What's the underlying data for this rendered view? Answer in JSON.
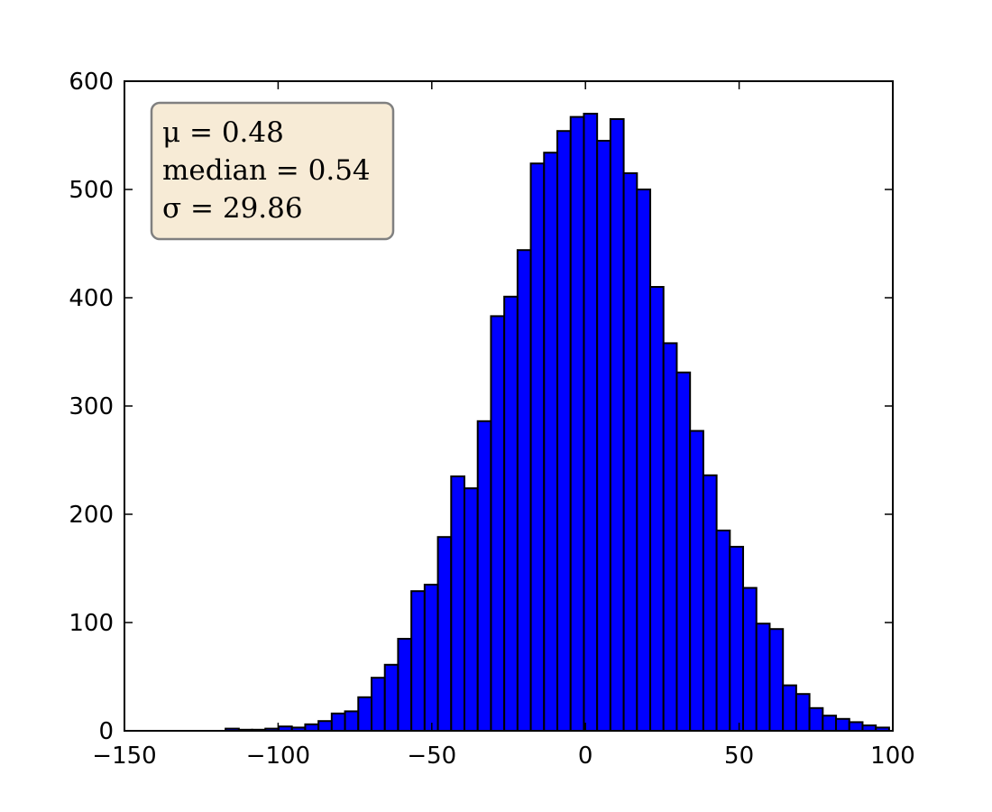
{
  "chart_data": {
    "type": "histogram",
    "bins": [
      -117.1,
      -112.78,
      -108.46,
      -104.15,
      -99.83,
      -95.51,
      -91.19,
      -86.87,
      -82.56,
      -78.24,
      -73.92,
      -69.6,
      -65.28,
      -60.97,
      -56.65,
      -52.33,
      -48.01,
      -43.69,
      -39.38,
      -35.06,
      -30.74,
      -26.42,
      -22.1,
      -17.79,
      -13.47,
      -9.15,
      -4.83,
      -0.51,
      3.8,
      8.12,
      12.44,
      16.76,
      21.08,
      25.39,
      29.71,
      34.03,
      38.35,
      42.67,
      46.98,
      51.3,
      55.62,
      59.94,
      64.26,
      68.57,
      72.89,
      77.21,
      81.53,
      85.85,
      90.16,
      94.48,
      98.8
    ],
    "values": [
      2,
      1,
      1,
      2,
      4,
      3,
      6,
      9,
      16,
      18,
      31,
      49,
      61,
      85,
      129,
      135,
      179,
      235,
      224,
      286,
      383,
      401,
      444,
      524,
      534,
      554,
      567,
      570,
      545,
      565,
      515,
      500,
      410,
      358,
      331,
      277,
      236,
      185,
      170,
      132,
      99,
      94,
      42,
      34,
      21,
      14,
      11,
      8,
      5,
      3
    ],
    "color": "#0000ff",
    "xlim": [
      -150,
      100
    ],
    "xticks": [
      {
        "value": -150,
        "label": "−150"
      },
      {
        "value": -100,
        "label": "−100"
      },
      {
        "value": -50,
        "label": "−50"
      },
      0,
      50,
      100
    ],
    "ylim": [
      0,
      600
    ],
    "yticks": [
      0,
      100,
      200,
      300,
      400,
      500,
      600
    ],
    "annotations": [
      "μ = 0.48",
      "median = 0.54",
      "σ = 29.86"
    ]
  }
}
